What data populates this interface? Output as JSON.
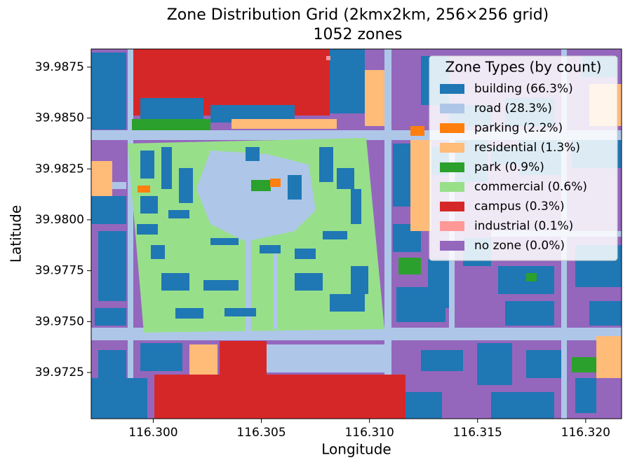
{
  "chart_data": {
    "type": "map",
    "title": "Zone Distribution Grid (2kmx2km, 256×256 grid)",
    "subtitle": "1052 zones",
    "x_label": "Longitude",
    "y_label": "Latitude",
    "xlim": [
      116.29713,
      116.32166
    ],
    "ylim": [
      39.97023,
      39.98839
    ],
    "xticks": [
      {
        "value": 116.3,
        "label": "116.300"
      },
      {
        "value": 116.305,
        "label": "116.305"
      },
      {
        "value": 116.31,
        "label": "116.310"
      },
      {
        "value": 116.315,
        "label": "116.315"
      },
      {
        "value": 116.32,
        "label": "116.320"
      }
    ],
    "yticks": [
      39.9725,
      {
        "value": 39.975,
        "label": "39.9750"
      },
      39.9775,
      {
        "value": 39.98,
        "label": "39.9800"
      },
      39.9825,
      {
        "value": 39.985,
        "label": "39.9850"
      },
      39.9875
    ],
    "legend": {
      "title": "Zone Types (by count)",
      "position": "upper right",
      "items": [
        {
          "label": "building (66.3%)",
          "color": "#1f77b4"
        },
        {
          "label": "road (28.3%)",
          "color": "#aec7e8"
        },
        {
          "label": "parking (2.2%)",
          "color": "#ff7f0e"
        },
        {
          "label": "residential (1.3%)",
          "color": "#ffbb78"
        },
        {
          "label": "park (0.9%)",
          "color": "#2ca02c"
        },
        {
          "label": "commercial (0.6%)",
          "color": "#98df8a"
        },
        {
          "label": "campus (0.3%)",
          "color": "#d62728"
        },
        {
          "label": "industrial (0.1%)",
          "color": "#ff9896"
        },
        {
          "label": "no zone (0.0%)",
          "color": "#9467bd"
        }
      ]
    }
  }
}
